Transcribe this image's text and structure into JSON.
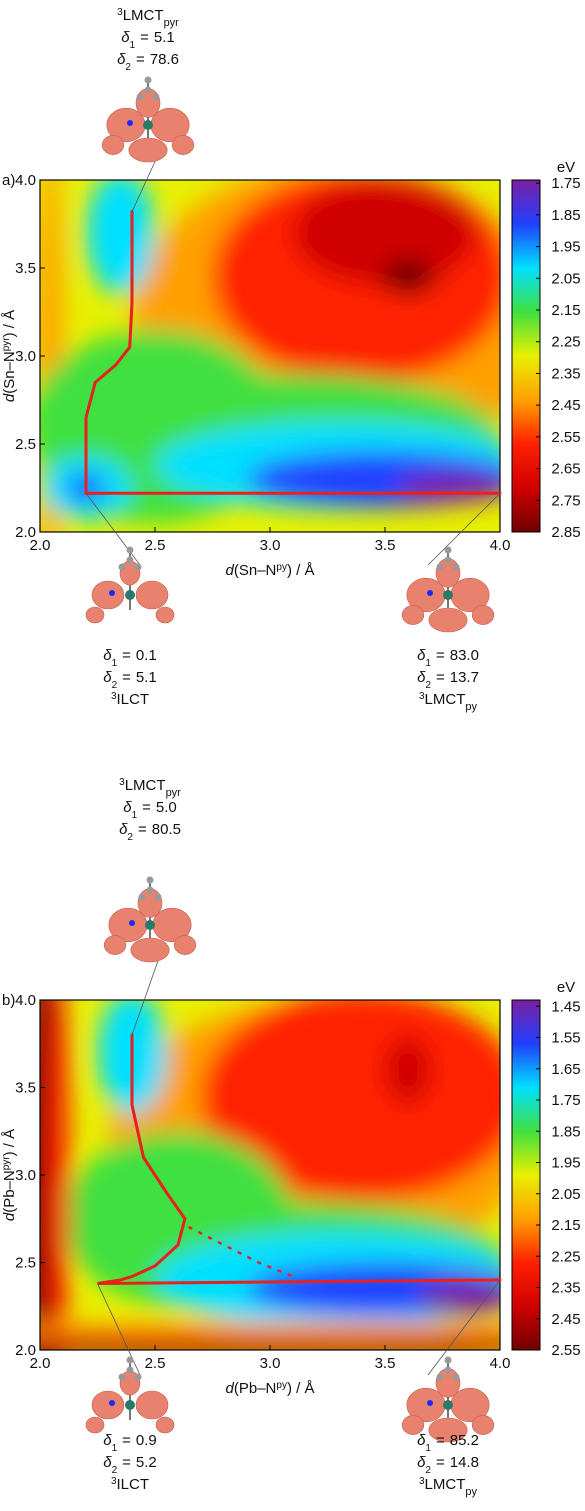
{
  "chart_data": [
    {
      "type": "contour",
      "panel_label": "a)",
      "x_label": [
        "d",
        "(Sn–N",
        "py",
        ") / Å"
      ],
      "y_label": [
        "d",
        "(Sn–N",
        "pyr",
        ") / Å"
      ],
      "xlim": [
        2,
        4
      ],
      "ylim": [
        2,
        4
      ],
      "xticks": [
        {
          "value": 2,
          "label": "2.0"
        },
        2.5,
        {
          "value": 3,
          "label": "3.0"
        },
        3.5,
        {
          "value": 4,
          "label": "4.0"
        }
      ],
      "yticks": [
        {
          "value": 2,
          "label": "2.0"
        },
        2.5,
        {
          "value": 3,
          "label": "3.0"
        },
        3.5,
        {
          "value": 4,
          "label": "4.0"
        }
      ],
      "colorbar": {
        "unit": "eV",
        "clim": [
          1.74,
          2.85
        ],
        "ticks": [
          1.75,
          1.85,
          1.95,
          2.05,
          2.15,
          2.25,
          2.35,
          2.45,
          2.55,
          2.65,
          2.75,
          2.85
        ],
        "colors": [
          "#7b1fa2",
          "#2040ff",
          "#00e0ff",
          "#40e040",
          "#e8f000",
          "#ffa000",
          "#ff2000",
          "#d00000",
          "#700000"
        ]
      },
      "path": {
        "color": "#e8201e",
        "x": [
          2.4,
          2.4,
          2.39,
          2.33,
          2.24,
          2.2,
          2.2,
          2.2,
          4.0
        ],
        "y": [
          3.82,
          3.3,
          3.05,
          2.95,
          2.85,
          2.65,
          2.4,
          2.22,
          2.22
        ]
      },
      "annotations": [
        {
          "multiplicity": "3",
          "state": "LMCT",
          "subscript": "pyr",
          "deltas": [
            5.1,
            78.6
          ]
        },
        {
          "multiplicity": "3",
          "state": "ILCT",
          "deltas": [
            0.1,
            5.1
          ]
        },
        {
          "multiplicity": "3",
          "state": "LMCT",
          "subscript": "py",
          "deltas": [
            83,
            13.7
          ],
          "delta_labels": [
            "83.0",
            "13.7"
          ]
        }
      ]
    },
    {
      "type": "contour",
      "panel_label": "b)",
      "x_label": [
        "d",
        "(Pb–N",
        "py",
        ") / Å"
      ],
      "y_label": [
        "d",
        "(Pb–N",
        "pyr",
        ") / Å"
      ],
      "xlim": [
        2,
        4
      ],
      "ylim": [
        2,
        4
      ],
      "xticks": [
        {
          "value": 2,
          "label": "2.0"
        },
        2.5,
        {
          "value": 3,
          "label": "3.0"
        },
        3.5,
        {
          "value": 4,
          "label": "4.0"
        }
      ],
      "yticks": [
        {
          "value": 2,
          "label": "2.0"
        },
        2.5,
        {
          "value": 3,
          "label": "3.0"
        },
        3.5,
        {
          "value": 4,
          "label": "4.0"
        }
      ],
      "colorbar": {
        "unit": "eV",
        "clim": [
          1.43,
          2.55
        ],
        "ticks": [
          1.45,
          1.55,
          1.65,
          1.75,
          1.85,
          1.95,
          2.05,
          2.15,
          2.25,
          2.35,
          2.45,
          2.55
        ],
        "colors": [
          "#7b1fa2",
          "#2040ff",
          "#00e0ff",
          "#40e040",
          "#e8f000",
          "#ffa000",
          "#ff2000",
          "#d00000",
          "#700000"
        ]
      },
      "path": {
        "color": "#e8201e",
        "x": [
          2.4,
          2.4,
          2.45,
          2.55,
          2.63,
          2.6,
          2.5,
          2.4,
          2.35,
          2.25,
          4.0
        ],
        "y": [
          3.8,
          3.4,
          3.1,
          2.9,
          2.75,
          2.6,
          2.48,
          2.42,
          2.4,
          2.38,
          2.4
        ]
      },
      "dotted_path": {
        "x": [
          2.65,
          2.8,
          2.95,
          3.1
        ],
        "y": [
          2.7,
          2.6,
          2.5,
          2.42
        ]
      },
      "annotations": [
        {
          "multiplicity": "3",
          "state": "LMCT",
          "subscript": "pyr",
          "deltas": [
            5,
            80.5
          ],
          "delta_labels": [
            "5.0",
            "80.5"
          ]
        },
        {
          "multiplicity": "3",
          "state": "ILCT",
          "deltas": [
            0.9,
            5.2
          ]
        },
        {
          "multiplicity": "3",
          "state": "LMCT",
          "subscript": "py",
          "deltas": [
            85.2,
            14.8
          ]
        }
      ]
    }
  ],
  "delta_symbol": "δ",
  "delta_indices": [
    "1",
    "2"
  ],
  "equals": "="
}
